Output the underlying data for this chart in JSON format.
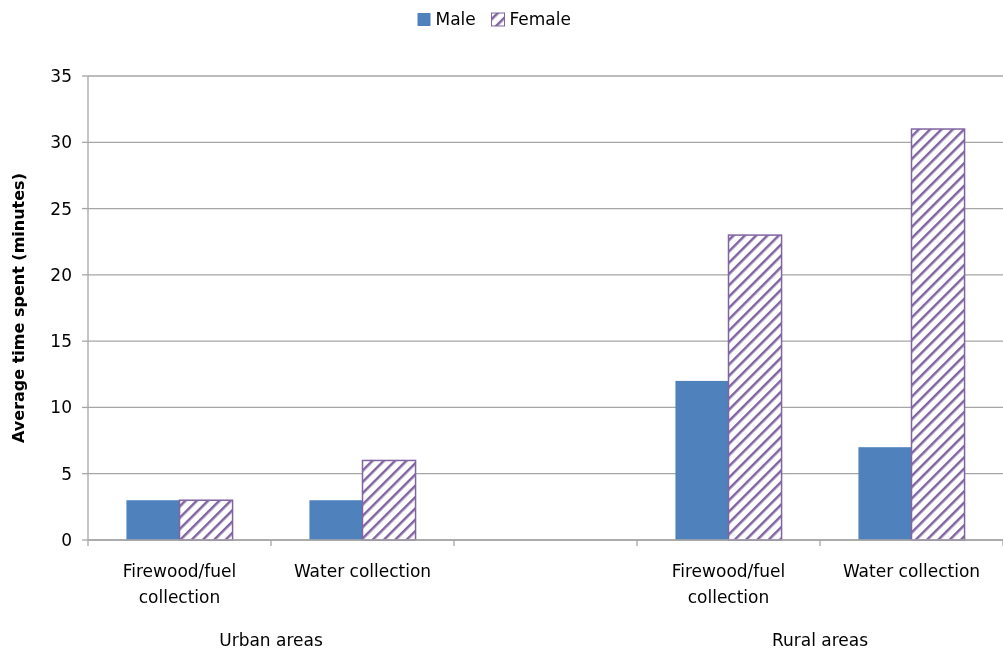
{
  "chart_data": {
    "type": "bar",
    "ylabel": "Average time spent (minutes)",
    "categories": [
      "Firewood/fuel collection",
      "Water collection",
      null,
      "Firewood/fuel collection",
      "Water collection"
    ],
    "series": [
      {
        "name": "Male",
        "color": "#4f81bd",
        "values": [
          3,
          3,
          null,
          12,
          7
        ]
      },
      {
        "name": "Female",
        "color": "#8064a2",
        "values": [
          3,
          6,
          null,
          23,
          31
        ]
      }
    ],
    "ylim": [
      0,
      35
    ],
    "yticks": [
      0,
      5,
      10,
      15,
      20,
      25,
      30,
      35
    ],
    "grid": "y",
    "legend": "top",
    "annotations": [
      "Urban areas",
      "Rural areas"
    ]
  }
}
